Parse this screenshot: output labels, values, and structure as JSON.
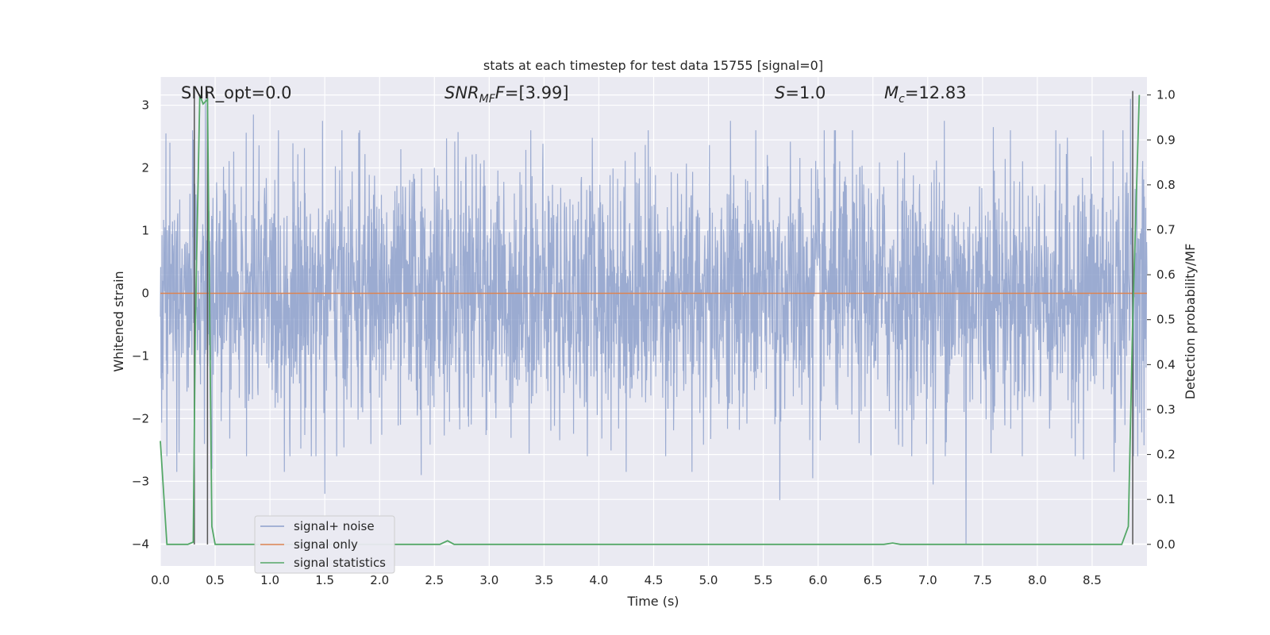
{
  "chart_data": {
    "type": "line",
    "title": "stats at each timestep for test data 15755 [signal=0]",
    "xlabel": "Time (s)",
    "ylabel": "Whitened strain",
    "ylabel_right": "Detection probability/MF",
    "xlim": [
      0.0,
      9.0
    ],
    "ylim": [
      -4.35,
      3.45
    ],
    "ylim_right": [
      -0.048,
      1.04
    ],
    "xticks": [
      "0.0",
      "0.5",
      "1.0",
      "1.5",
      "2.0",
      "2.5",
      "3.0",
      "3.5",
      "4.0",
      "4.5",
      "5.0",
      "5.5",
      "6.0",
      "6.5",
      "7.0",
      "7.5",
      "8.0",
      "8.5"
    ],
    "yticks": [
      "3",
      "2",
      "1",
      "0",
      "−1",
      "−2",
      "−3",
      "−4"
    ],
    "yticks_right": [
      "1.0",
      "0.9",
      "0.8",
      "0.7",
      "0.6",
      "0.5",
      "0.4",
      "0.3",
      "0.2",
      "0.1",
      "0.0"
    ],
    "grid": true,
    "legend_position": "lower-left",
    "annotations": {
      "snr_opt": "SNR_opt=0.0",
      "snr_mf_main": "SNR",
      "snr_mf_sub": "MF",
      "snr_mf_value": "=[3.99]",
      "s_symbol": "S",
      "s_value": "=1.0",
      "mc_symbol": "M",
      "mc_sub": "c",
      "mc_value": "=12.83"
    },
    "vertical_lines_x": [
      0.31,
      0.43,
      8.87
    ],
    "series": [
      {
        "name": "signal+ noise",
        "color": "#8da0cb",
        "description_values": "whitened noise, approx. Gaussian, mostly within [-2.5, 2.5], extremes about 3.1 and -4.0",
        "envelope_seed": 15755,
        "peaks_high": [
          [
            0.05,
            2.55
          ],
          [
            0.3,
            2.45
          ],
          [
            0.41,
            3.1
          ],
          [
            0.85,
            2.85
          ],
          [
            1.48,
            2.75
          ],
          [
            2.5,
            2.0
          ],
          [
            3.38,
            2.6
          ],
          [
            4.45,
            2.6
          ],
          [
            5.2,
            2.75
          ],
          [
            6.15,
            2.6
          ],
          [
            7.15,
            2.75
          ],
          [
            7.6,
            2.65
          ],
          [
            8.6,
            2.6
          ],
          [
            8.85,
            3.1
          ]
        ],
        "peaks_low": [
          [
            0.06,
            -2.6
          ],
          [
            0.15,
            -2.85
          ],
          [
            0.47,
            -2.8
          ],
          [
            1.13,
            -2.85
          ],
          [
            1.5,
            -3.2
          ],
          [
            2.38,
            -2.9
          ],
          [
            4.25,
            -2.85
          ],
          [
            4.85,
            -2.85
          ],
          [
            5.65,
            -3.3
          ],
          [
            5.95,
            -2.95
          ],
          [
            7.05,
            -3.05
          ],
          [
            7.35,
            -4.0
          ],
          [
            8.42,
            -2.65
          ],
          [
            8.7,
            -2.85
          ]
        ]
      },
      {
        "name": "signal only",
        "color": "#dd8452",
        "x": [
          0.0,
          9.0
        ],
        "y": [
          0.0,
          0.0
        ]
      },
      {
        "name": "signal statistics",
        "color": "#55a868",
        "axis": "right",
        "x": [
          0.0,
          0.06,
          0.12,
          0.25,
          0.3,
          0.32,
          0.36,
          0.39,
          0.43,
          0.47,
          0.5,
          0.56,
          0.7,
          1.0,
          2.55,
          2.62,
          2.68,
          3.0,
          6.6,
          6.68,
          6.75,
          7.0,
          8.77,
          8.83,
          8.87,
          8.93
        ],
        "y": [
          0.23,
          0.0,
          0.0,
          0.0,
          0.005,
          0.5,
          1.0,
          0.98,
          0.99,
          0.04,
          0.0,
          0.0,
          0.0,
          0.0,
          0.0,
          0.008,
          0.0,
          0.0,
          0.0,
          0.003,
          0.0,
          0.0,
          0.0,
          0.04,
          0.5,
          1.0
        ]
      }
    ]
  }
}
